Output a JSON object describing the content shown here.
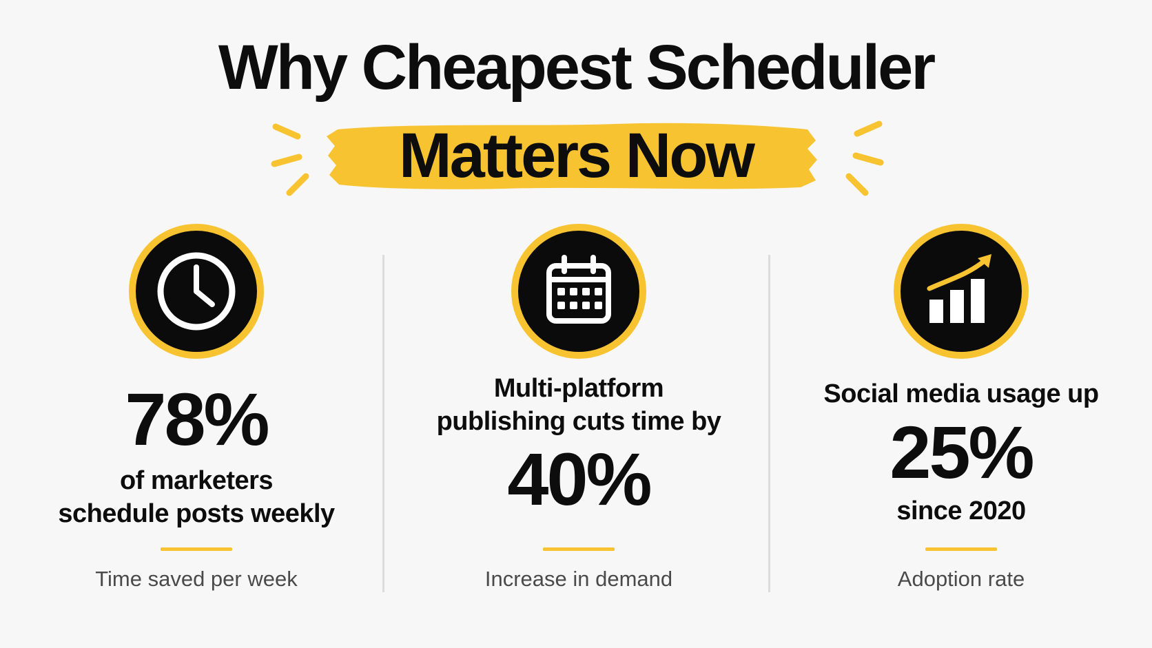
{
  "title": {
    "line1": "Why Cheapest Scheduler",
    "line2": "Matters Now"
  },
  "colors": {
    "accent": "#f7c331",
    "icon_bg": "#0b0b0b",
    "text": "#0d0d0d",
    "caption": "#4a4a4a",
    "background": "#f7f7f7"
  },
  "stats": [
    {
      "icon": "clock-icon",
      "value": "78%",
      "description_lines": [
        "of marketers",
        "schedule posts weekly"
      ],
      "caption": "Time saved per week"
    },
    {
      "icon": "calendar-icon",
      "description_lines": [
        "Multi-platform",
        "publishing cuts time by"
      ],
      "value": "40%",
      "caption": "Increase in demand"
    },
    {
      "icon": "growth-chart-icon",
      "description_lines": [
        "Social media usage up"
      ],
      "value": "25%",
      "sub_text": "since 2020",
      "caption": "Adoption rate"
    }
  ]
}
